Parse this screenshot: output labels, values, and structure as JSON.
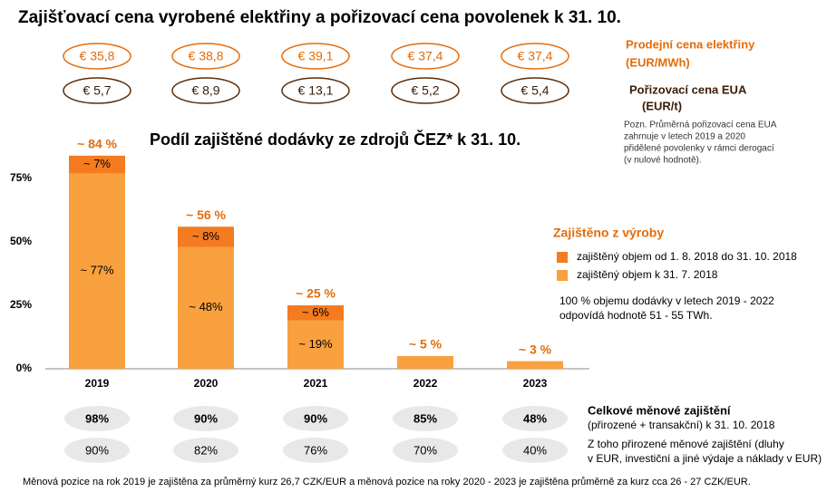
{
  "header_title": "Zajišťovací cena vyrobené elektřiny a pořizovací cena povolenek k 31. 10.",
  "price_rows": [
    {
      "label_lines": [
        "Prodejní cena elektřiny",
        "(EUR/MWh)"
      ],
      "values": [
        "€ 35,8",
        "€ 38,8",
        "€ 39,1",
        "€ 37,4",
        "€ 37,4"
      ]
    },
    {
      "label_lines": [
        "Pořizovací cena EUA",
        "(EUR/t)"
      ],
      "values": [
        "€ 5,7",
        "€ 8,9",
        "€ 13,1",
        "€ 5,2",
        "€ 5,4"
      ]
    }
  ],
  "eua_note": [
    "Pozn. Průměrná pořizovací cena EUA",
    "zahrnuje v letech 2019 a 2020",
    "přidělené povolenky v rámci derogací",
    "(v nulové hodnotě)."
  ],
  "chart_data": {
    "type": "stacked_bar",
    "title": "Podíl zajištěné dodávky ze zdrojů ČEZ* k 31. 10.",
    "categories": [
      "2019",
      "2020",
      "2021",
      "2022",
      "2023"
    ],
    "series": [
      {
        "name": "zajištěný objem k 31. 7. 2018",
        "color": "#f9a03f",
        "values": [
          77,
          48,
          19,
          5,
          3
        ],
        "value_labels": [
          "~ 77%",
          "~ 48%",
          "~ 19%",
          null,
          null
        ]
      },
      {
        "name": "zajištěný objem od 1. 8. 2018 do 31. 10. 2018",
        "color": "#f47b20",
        "values": [
          7,
          8,
          6,
          null,
          null
        ],
        "value_labels": [
          "~ 7%",
          "~ 8%",
          "~ 6%",
          null,
          null
        ]
      }
    ],
    "totals": [
      84,
      56,
      25,
      5,
      3
    ],
    "total_labels": [
      "~ 84 %",
      "~ 56 %",
      "~ 25 %",
      "~ 5 %",
      "~ 3 %"
    ],
    "ylim": [
      0,
      85
    ],
    "yticks": [
      {
        "value": 0,
        "label": "0%"
      },
      {
        "value": 25,
        "label": "25%"
      },
      {
        "value": 50,
        "label": "50%"
      },
      {
        "value": 75,
        "label": "75%"
      }
    ],
    "legend_title": "Zajištěno z výroby",
    "legend_note": [
      "100 % objemu dodávky v letech 2019 - 2022",
      "odpovídá hodnotě 51 - 55 TWh."
    ]
  },
  "hedge_rows": [
    {
      "label_lines": [
        "Celkové měnové zajištění",
        "(přirozené + transakční) k 31. 10. 2018"
      ],
      "values": [
        "98%",
        "90%",
        "90%",
        "85%",
        "48%"
      ]
    },
    {
      "label_lines": [
        "Z toho přirozené měnové zajištění (dluhy",
        "v EUR, investiční a jiné výdaje a náklady v EUR)"
      ],
      "values": [
        "90%",
        "82%",
        "76%",
        "70%",
        "40%"
      ]
    }
  ],
  "footnote": "Měnová pozice na rok 2019 je zajištěna za průměrný kurz 26,7 CZK/EUR a měnová pozice na roky 2020 - 2023 je zajištěna průměrně za kurz cca 26 - 27 CZK/EUR."
}
